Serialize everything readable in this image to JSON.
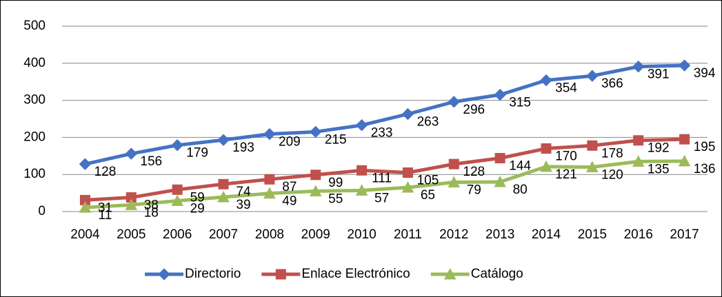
{
  "chart_data": {
    "type": "line",
    "categories": [
      "2004",
      "2005",
      "2006",
      "2007",
      "2008",
      "2009",
      "2010",
      "2011",
      "2012",
      "2013",
      "2014",
      "2015",
      "2016",
      "2017"
    ],
    "series": [
      {
        "name": "Directorio",
        "color": "#4472c4",
        "marker": "diamond",
        "values": [
          128,
          156,
          179,
          193,
          209,
          215,
          233,
          263,
          296,
          315,
          354,
          366,
          391,
          394
        ]
      },
      {
        "name": "Enlace Electrónico",
        "color": "#c0504d",
        "marker": "square",
        "values": [
          31,
          38,
          59,
          74,
          87,
          99,
          111,
          105,
          128,
          144,
          170,
          178,
          192,
          195
        ]
      },
      {
        "name": "Catálogo",
        "color": "#9bbb59",
        "marker": "triangle",
        "values": [
          11,
          18,
          29,
          39,
          49,
          55,
          57,
          65,
          79,
          80,
          121,
          120,
          135,
          136
        ]
      }
    ],
    "ylim": [
      0,
      500
    ],
    "yticks": [
      0,
      100,
      200,
      300,
      400,
      500
    ],
    "grid": true,
    "legend": "bottom"
  }
}
